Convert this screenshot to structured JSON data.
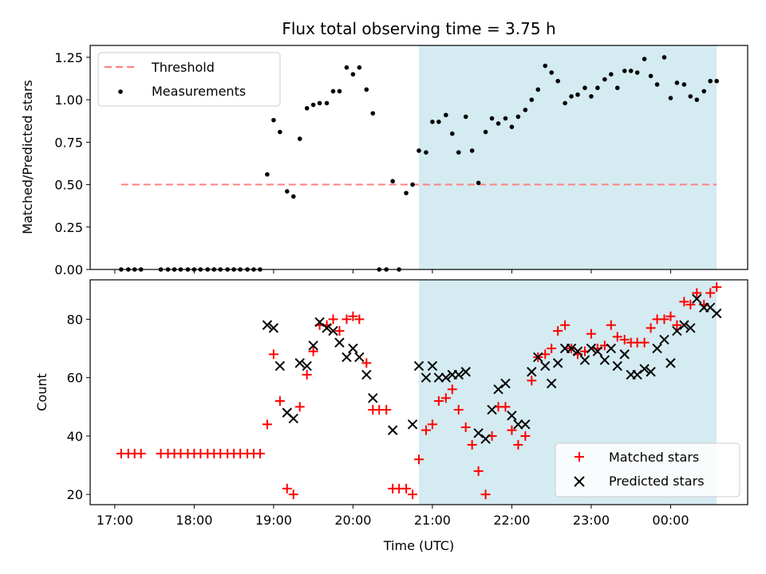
{
  "figure": {
    "title": "Flux total observing time = 3.75 h",
    "xlabel": "Time (UTC)",
    "xticks": [
      "17:00",
      "18:00",
      "19:00",
      "20:00",
      "21:00",
      "22:00",
      "23:00",
      "00:00"
    ],
    "shade_color": "#d4ebf1"
  },
  "chart_data": [
    {
      "type": "scatter",
      "panel": "top",
      "ylabel": "Matched/Predicted stars",
      "ylim": [
        0,
        1.32
      ],
      "yticks": [
        "0.00",
        "0.25",
        "0.50",
        "0.75",
        "1.00",
        "1.25"
      ],
      "ytick_values": [
        0,
        0.25,
        0.5,
        0.75,
        1.0,
        1.25
      ],
      "threshold": 0.5,
      "x_hours": [
        17.08,
        17.17,
        17.25,
        17.33,
        17.58,
        17.67,
        17.75,
        17.83,
        17.92,
        18.0,
        18.08,
        18.17,
        18.25,
        18.33,
        18.42,
        18.5,
        18.58,
        18.67,
        18.75,
        18.83,
        18.92,
        19.0,
        19.08,
        19.17,
        19.25,
        19.33,
        19.42,
        19.5,
        19.58,
        19.67,
        19.75,
        19.83,
        19.92,
        20.0,
        20.08,
        20.17,
        20.25,
        20.33,
        20.42,
        20.5,
        20.58,
        20.67,
        20.75,
        20.83,
        20.92,
        21.0,
        21.08,
        21.17,
        21.25,
        21.33,
        21.42,
        21.5,
        21.58,
        21.67,
        21.75,
        21.83,
        21.92,
        22.0,
        22.08,
        22.17,
        22.25,
        22.33,
        22.42,
        22.5,
        22.58,
        22.67,
        22.75,
        22.83,
        22.92,
        23.0,
        23.08,
        23.17,
        23.25,
        23.33,
        23.42,
        23.5,
        23.58,
        23.67,
        23.75,
        23.83,
        23.92,
        24.0,
        24.08,
        24.17,
        24.25,
        24.33,
        24.42,
        24.5,
        24.58
      ],
      "ratio": [
        0,
        0,
        0,
        0,
        0,
        0,
        0,
        0,
        0,
        0,
        0,
        0,
        0,
        0,
        0,
        0,
        0,
        0,
        0,
        0,
        0.56,
        0.88,
        0.81,
        0.46,
        0.43,
        0.77,
        0.95,
        0.97,
        0.98,
        0.98,
        1.05,
        1.05,
        1.19,
        1.15,
        1.19,
        1.06,
        0.92,
        0,
        0,
        0.52,
        0,
        0.45,
        0.5,
        0.7,
        0.69,
        0.87,
        0.87,
        0.91,
        0.8,
        0.69,
        0.9,
        0.7,
        0.51,
        0.81,
        0.89,
        0.86,
        0.89,
        0.84,
        0.9,
        0.94,
        1.0,
        1.06,
        1.2,
        1.16,
        1.11,
        0.98,
        1.02,
        1.03,
        1.07,
        1.02,
        1.07,
        1.12,
        1.15,
        1.07,
        1.17,
        1.17,
        1.16,
        1.24,
        1.14,
        1.09,
        1.25,
        1.01,
        1.1,
        1.09,
        1.02,
        1.0,
        1.05,
        1.11,
        1.11
      ],
      "series_names": [
        "Threshold",
        "Measurements"
      ],
      "legend": "top-left",
      "shaded_range_hours": [
        20.83,
        24.58
      ]
    },
    {
      "type": "scatter",
      "panel": "bottom",
      "ylabel": "Count",
      "ylim": [
        16.5,
        93.5
      ],
      "yticks": [
        "20",
        "40",
        "60",
        "80"
      ],
      "ytick_values": [
        20,
        40,
        60,
        80
      ],
      "series": [
        {
          "name": "Matched stars",
          "color": "#ff0000",
          "marker": "+",
          "points": [
            [
              17.08,
              34
            ],
            [
              17.17,
              34
            ],
            [
              17.25,
              34
            ],
            [
              17.33,
              34
            ],
            [
              17.58,
              34
            ],
            [
              17.67,
              34
            ],
            [
              17.75,
              34
            ],
            [
              17.83,
              34
            ],
            [
              17.92,
              34
            ],
            [
              18.0,
              34
            ],
            [
              18.08,
              34
            ],
            [
              18.17,
              34
            ],
            [
              18.25,
              34
            ],
            [
              18.33,
              34
            ],
            [
              18.42,
              34
            ],
            [
              18.5,
              34
            ],
            [
              18.58,
              34
            ],
            [
              18.67,
              34
            ],
            [
              18.75,
              34
            ],
            [
              18.83,
              34
            ],
            [
              18.92,
              44
            ],
            [
              19.0,
              68
            ],
            [
              19.08,
              52
            ],
            [
              19.17,
              22
            ],
            [
              19.25,
              20
            ],
            [
              19.33,
              50
            ],
            [
              19.42,
              61
            ],
            [
              19.5,
              69
            ],
            [
              19.58,
              78
            ],
            [
              19.67,
              78
            ],
            [
              19.75,
              80
            ],
            [
              19.83,
              76
            ],
            [
              19.92,
              80
            ],
            [
              20.0,
              81
            ],
            [
              20.08,
              80
            ],
            [
              20.17,
              65
            ],
            [
              20.25,
              49
            ],
            [
              20.33,
              49
            ],
            [
              20.42,
              49
            ],
            [
              20.5,
              22
            ],
            [
              20.58,
              22
            ],
            [
              20.67,
              22
            ],
            [
              20.75,
              20
            ],
            [
              20.83,
              32
            ],
            [
              20.92,
              42
            ],
            [
              21.0,
              44
            ],
            [
              21.08,
              52
            ],
            [
              21.17,
              53
            ],
            [
              21.25,
              56
            ],
            [
              21.33,
              49
            ],
            [
              21.42,
              43
            ],
            [
              21.5,
              37
            ],
            [
              21.58,
              28
            ],
            [
              21.67,
              20
            ],
            [
              21.75,
              40
            ],
            [
              21.83,
              50
            ],
            [
              21.92,
              50
            ],
            [
              22.0,
              42
            ],
            [
              22.08,
              37
            ],
            [
              22.17,
              40
            ],
            [
              22.25,
              59
            ],
            [
              22.33,
              67
            ],
            [
              22.42,
              68
            ],
            [
              22.5,
              70
            ],
            [
              22.58,
              76
            ],
            [
              22.67,
              78
            ],
            [
              22.75,
              70
            ],
            [
              22.83,
              68
            ],
            [
              22.92,
              69
            ],
            [
              23.0,
              75
            ],
            [
              23.08,
              70
            ],
            [
              23.17,
              71
            ],
            [
              23.25,
              78
            ],
            [
              23.33,
              74
            ],
            [
              23.42,
              73
            ],
            [
              23.5,
              72
            ],
            [
              23.58,
              72
            ],
            [
              23.67,
              72
            ],
            [
              23.75,
              77
            ],
            [
              23.83,
              80
            ],
            [
              23.92,
              80
            ],
            [
              24.0,
              81
            ],
            [
              24.08,
              78
            ],
            [
              24.17,
              86
            ],
            [
              24.25,
              85
            ],
            [
              24.33,
              89
            ],
            [
              24.42,
              85
            ],
            [
              24.5,
              89
            ],
            [
              24.58,
              91
            ]
          ]
        },
        {
          "name": "Predicted stars",
          "color": "#000000",
          "marker": "x",
          "points": [
            [
              18.92,
              78
            ],
            [
              19.0,
              77
            ],
            [
              19.08,
              64
            ],
            [
              19.17,
              48
            ],
            [
              19.25,
              46
            ],
            [
              19.33,
              65
            ],
            [
              19.42,
              64
            ],
            [
              19.5,
              71
            ],
            [
              19.58,
              79
            ],
            [
              19.67,
              77
            ],
            [
              19.75,
              76
            ],
            [
              19.83,
              72
            ],
            [
              19.92,
              67
            ],
            [
              20.0,
              70
            ],
            [
              20.08,
              67
            ],
            [
              20.17,
              61
            ],
            [
              20.25,
              53
            ],
            [
              20.5,
              42
            ],
            [
              20.75,
              44
            ],
            [
              20.83,
              64
            ],
            [
              20.92,
              60
            ],
            [
              21.0,
              64
            ],
            [
              21.08,
              60
            ],
            [
              21.17,
              60
            ],
            [
              21.25,
              61
            ],
            [
              21.33,
              61
            ],
            [
              21.42,
              62
            ],
            [
              21.58,
              41
            ],
            [
              21.67,
              39
            ],
            [
              21.75,
              49
            ],
            [
              21.83,
              56
            ],
            [
              21.92,
              58
            ],
            [
              22.0,
              47
            ],
            [
              22.08,
              44
            ],
            [
              22.17,
              44
            ],
            [
              22.25,
              62
            ],
            [
              22.33,
              67
            ],
            [
              22.42,
              64
            ],
            [
              22.5,
              58
            ],
            [
              22.58,
              65
            ],
            [
              22.67,
              70
            ],
            [
              22.75,
              70
            ],
            [
              22.83,
              69
            ],
            [
              22.92,
              66
            ],
            [
              23.0,
              70
            ],
            [
              23.08,
              69
            ],
            [
              23.17,
              66
            ],
            [
              23.25,
              70
            ],
            [
              23.33,
              64
            ],
            [
              23.42,
              68
            ],
            [
              23.5,
              61
            ],
            [
              23.58,
              61
            ],
            [
              23.67,
              63
            ],
            [
              23.75,
              62
            ],
            [
              23.83,
              70
            ],
            [
              23.92,
              73
            ],
            [
              24.0,
              65
            ],
            [
              24.08,
              76
            ],
            [
              24.17,
              78
            ],
            [
              24.25,
              77
            ],
            [
              24.33,
              87
            ],
            [
              24.42,
              84
            ],
            [
              24.5,
              84
            ],
            [
              24.58,
              82
            ]
          ]
        }
      ],
      "legend": "bottom-right",
      "shaded_range_hours": [
        20.83,
        24.58
      ]
    }
  ]
}
